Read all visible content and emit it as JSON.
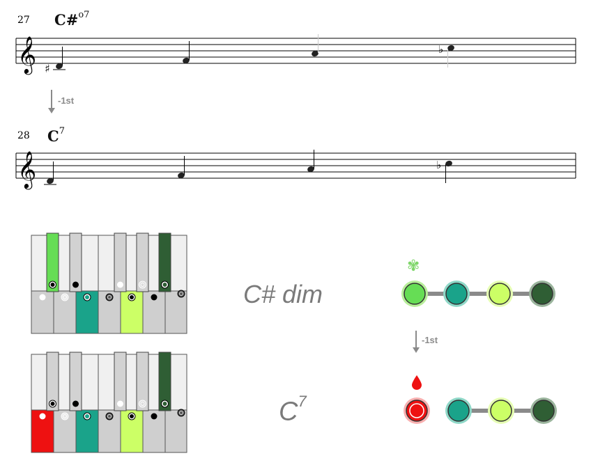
{
  "colors": {
    "staff": "#000000",
    "note": "#222222",
    "arrow": "#8a8a8a",
    "green_light": "#66dd55",
    "teal": "#1aa38a",
    "yellow_green": "#ccff66",
    "dark_green": "#2f5e34",
    "red": "#ee1111",
    "key_white": "#f0f0f0",
    "key_lower": "#cfcfcf",
    "key_black": "#d2d2d2"
  },
  "system1": {
    "measure_number": "27",
    "chord_root": "C#",
    "chord_suffix": "o7",
    "notes": [
      "C#4",
      "E4",
      "G4",
      "Bb4"
    ]
  },
  "transition_top": {
    "label": "-1st"
  },
  "system2": {
    "measure_number": "28",
    "chord_root": "C",
    "chord_suffix": "7",
    "notes": [
      "C4",
      "E4",
      "G4",
      "Bb4"
    ]
  },
  "keyboards": [
    {
      "name": "C# dim",
      "highlighted_white": [
        "E",
        "G"
      ],
      "highlighted_black": [
        "C#",
        "A#"
      ]
    },
    {
      "name": "C7",
      "highlighted_white": [
        "C",
        "E",
        "G"
      ],
      "highlighted_black": [
        "A#"
      ]
    }
  ],
  "chord_label_1": "C# dim",
  "chord_label_2_root": "C",
  "chord_label_2_sup": "7",
  "transition_right": {
    "label": "-1st"
  },
  "chain_top": {
    "icon": "leaf-icon",
    "nodes": [
      "green_light",
      "teal",
      "yellow_green",
      "dark_green"
    ]
  },
  "chain_bottom": {
    "icon": "drop-icon",
    "nodes": [
      "red",
      "teal",
      "yellow_green",
      "dark_green"
    ]
  }
}
